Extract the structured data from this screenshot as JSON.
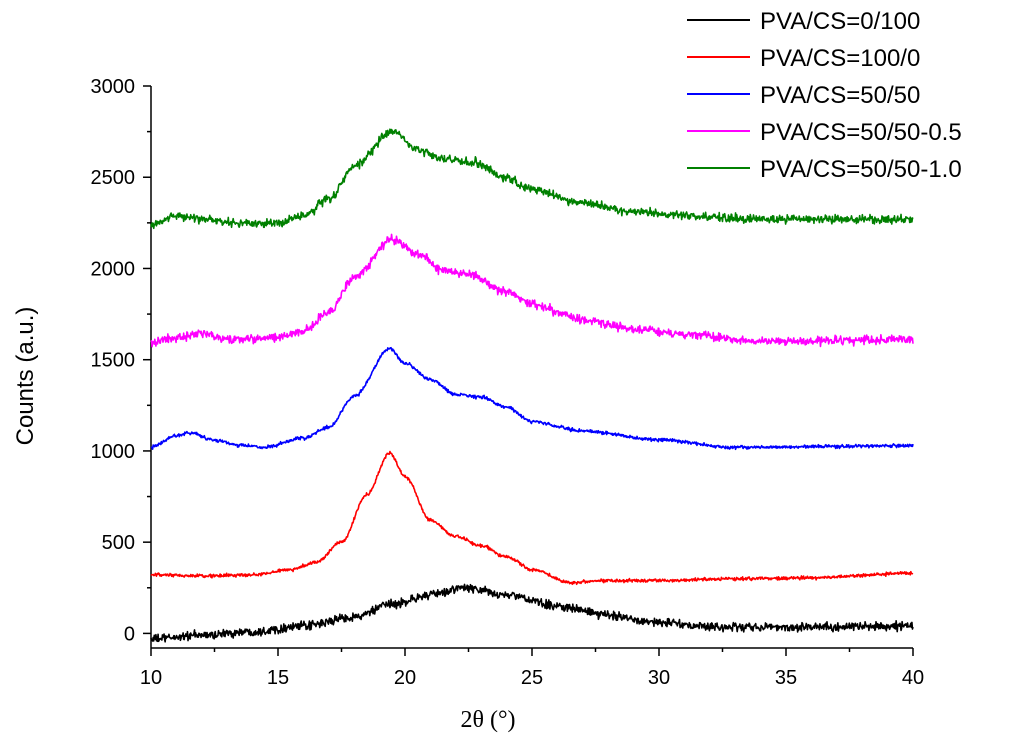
{
  "chart_data": {
    "type": "line",
    "title": "",
    "xlabel": "2θ (°)",
    "ylabel": "Counts (a.u.)",
    "xlim": [
      10,
      40
    ],
    "ylim": [
      -80,
      3000
    ],
    "xticks": [
      10,
      15,
      20,
      25,
      30,
      35,
      40
    ],
    "yticks": [
      0,
      500,
      1000,
      1500,
      2000,
      2500,
      3000
    ],
    "legend_position": "top-right",
    "series": [
      {
        "name": "PVA/CS=0/100",
        "color": "#000000",
        "noise": 18,
        "points": [
          [
            10,
            -30
          ],
          [
            12,
            -10
          ],
          [
            14,
            10
          ],
          [
            16,
            40
          ],
          [
            18,
            90
          ],
          [
            19.5,
            160
          ],
          [
            21,
            210
          ],
          [
            22.3,
            250
          ],
          [
            24,
            210
          ],
          [
            26,
            150
          ],
          [
            28,
            100
          ],
          [
            30,
            60
          ],
          [
            32,
            35
          ],
          [
            35,
            35
          ],
          [
            40,
            40
          ]
        ]
      },
      {
        "name": "PVA/CS=100/0",
        "color": "#ff0000",
        "noise": 7,
        "points": [
          [
            10,
            320
          ],
          [
            12,
            315
          ],
          [
            14,
            320
          ],
          [
            15.5,
            350
          ],
          [
            16.5,
            390
          ],
          [
            17.5,
            500
          ],
          [
            18.5,
            760
          ],
          [
            19.4,
            990
          ],
          [
            20,
            860
          ],
          [
            21,
            620
          ],
          [
            22,
            530
          ],
          [
            23,
            480
          ],
          [
            24,
            420
          ],
          [
            25,
            350
          ],
          [
            26.5,
            280
          ],
          [
            28,
            290
          ],
          [
            30,
            290
          ],
          [
            33,
            300
          ],
          [
            36,
            305
          ],
          [
            40,
            330
          ]
        ]
      },
      {
        "name": "PVA/CS=50/50",
        "color": "#0000ff",
        "noise": 7,
        "points": [
          [
            10,
            1020
          ],
          [
            11,
            1085
          ],
          [
            11.5,
            1100
          ],
          [
            12.5,
            1060
          ],
          [
            13.5,
            1030
          ],
          [
            14.5,
            1020
          ],
          [
            16,
            1070
          ],
          [
            17,
            1130
          ],
          [
            18,
            1300
          ],
          [
            19.4,
            1560
          ],
          [
            20,
            1480
          ],
          [
            21,
            1390
          ],
          [
            22,
            1310
          ],
          [
            23,
            1295
          ],
          [
            24,
            1240
          ],
          [
            25,
            1160
          ],
          [
            27,
            1110
          ],
          [
            30,
            1060
          ],
          [
            33,
            1020
          ],
          [
            37,
            1025
          ],
          [
            40,
            1030
          ]
        ]
      },
      {
        "name": "PVA/CS=50/50-0.5",
        "color": "#ff00ff",
        "noise": 18,
        "points": [
          [
            10,
            1600
          ],
          [
            12,
            1640
          ],
          [
            13,
            1610
          ],
          [
            15,
            1620
          ],
          [
            16,
            1660
          ],
          [
            17,
            1760
          ],
          [
            18,
            1950
          ],
          [
            19.5,
            2160
          ],
          [
            20.5,
            2080
          ],
          [
            21.5,
            1990
          ],
          [
            22.5,
            1970
          ],
          [
            24,
            1870
          ],
          [
            25,
            1800
          ],
          [
            27,
            1720
          ],
          [
            29,
            1670
          ],
          [
            31,
            1640
          ],
          [
            34,
            1600
          ],
          [
            40,
            1610
          ]
        ]
      },
      {
        "name": "PVA/CS=50/50-1.0",
        "color": "#008000",
        "noise": 18,
        "points": [
          [
            10,
            2240
          ],
          [
            11,
            2290
          ],
          [
            12,
            2270
          ],
          [
            13.5,
            2245
          ],
          [
            15,
            2250
          ],
          [
            16,
            2290
          ],
          [
            17,
            2380
          ],
          [
            18,
            2560
          ],
          [
            19.5,
            2750
          ],
          [
            20.5,
            2650
          ],
          [
            21.5,
            2600
          ],
          [
            22.7,
            2580
          ],
          [
            24,
            2500
          ],
          [
            25,
            2430
          ],
          [
            27,
            2360
          ],
          [
            29,
            2310
          ],
          [
            31,
            2290
          ],
          [
            34,
            2270
          ],
          [
            40,
            2270
          ]
        ]
      }
    ]
  }
}
